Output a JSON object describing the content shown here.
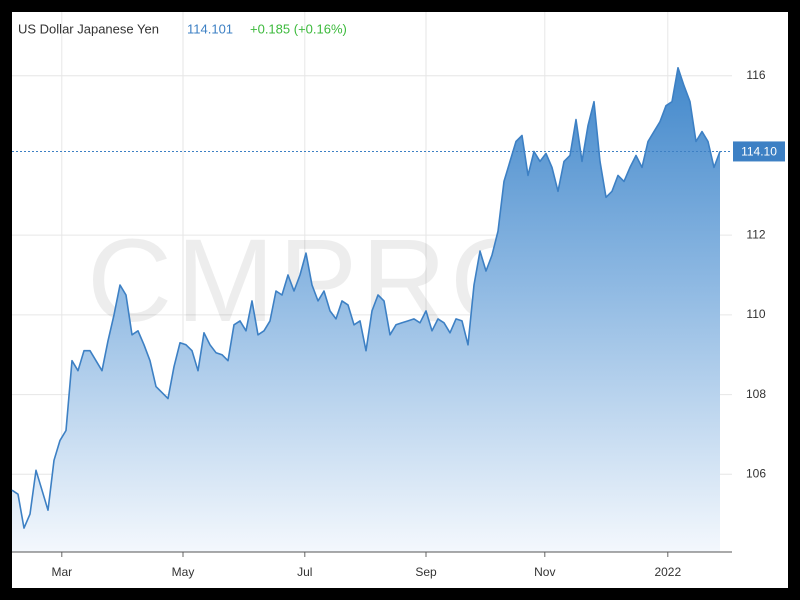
{
  "chart_data": {
    "type": "area",
    "title": "US Dollar Japanese Yen",
    "price": 114.101,
    "change": "+0.185 (+0.16%)",
    "watermark": "CMPRO.IR",
    "last_marker": {
      "value": 114.101,
      "label": "114.10"
    },
    "color": "#3d80c4",
    "grid": true,
    "values": [
      105.6,
      105.5,
      104.65,
      105.0,
      106.1,
      105.6,
      105.1,
      106.35,
      106.85,
      107.1,
      108.85,
      108.6,
      109.1,
      109.1,
      108.85,
      108.6,
      109.35,
      110.0,
      110.75,
      110.5,
      109.5,
      109.6,
      109.25,
      108.85,
      108.2,
      108.05,
      107.9,
      108.7,
      109.3,
      109.25,
      109.1,
      108.6,
      109.55,
      109.25,
      109.05,
      109.0,
      108.85,
      109.75,
      109.85,
      109.6,
      110.35,
      109.5,
      109.6,
      109.85,
      110.6,
      110.5,
      111.0,
      110.6,
      111.0,
      111.55,
      110.75,
      110.35,
      110.6,
      110.1,
      109.9,
      110.35,
      110.25,
      109.75,
      109.85,
      109.1,
      110.1,
      110.5,
      110.35,
      109.5,
      109.75,
      109.8,
      109.85,
      109.9,
      109.8,
      110.1,
      109.6,
      109.9,
      109.8,
      109.55,
      109.9,
      109.85,
      109.25,
      110.75,
      111.6,
      111.1,
      111.5,
      112.1,
      113.35,
      113.85,
      114.35,
      114.5,
      113.5,
      114.1,
      113.85,
      114.05,
      113.7,
      113.1,
      113.85,
      114.0,
      114.9,
      113.85,
      114.75,
      115.35,
      113.85,
      112.95,
      113.1,
      113.5,
      113.35,
      113.7,
      114.0,
      113.7,
      114.35,
      114.6,
      114.85,
      115.25,
      115.35,
      116.2,
      115.75,
      115.35,
      114.35,
      114.6,
      114.35,
      113.7,
      114.101
    ],
    "xlim": [
      0,
      120
    ],
    "xticks": [
      {
        "value": 8.3,
        "label": "Mar"
      },
      {
        "value": 28.5,
        "label": "May"
      },
      {
        "value": 48.8,
        "label": "Jul"
      },
      {
        "value": 69,
        "label": "Sep"
      },
      {
        "value": 88.8,
        "label": "Nov"
      },
      {
        "value": 109.3,
        "label": "2022"
      }
    ],
    "ylim": [
      104.05,
      117.6
    ],
    "yticks": [
      106,
      108,
      110,
      112,
      116
    ]
  }
}
